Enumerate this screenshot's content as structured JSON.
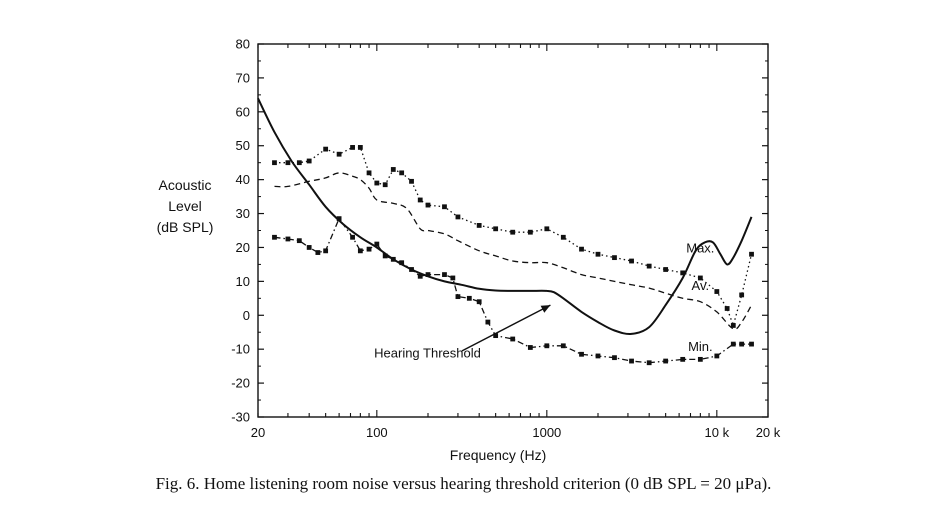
{
  "caption": "Fig. 6. Home listening room noise versus hearing threshold criterion (0 dB SPL = 20 μPa).",
  "chart_data": {
    "type": "line",
    "xscale": "log",
    "xlim": [
      20,
      20000
    ],
    "ylim": [
      -30,
      80
    ],
    "ylabel_lines": [
      "Acoustic",
      "Level",
      "(dB SPL)"
    ],
    "xlabel": "Frequency (Hz)",
    "yticks": [
      -30,
      -20,
      -10,
      0,
      10,
      20,
      30,
      40,
      50,
      60,
      70,
      80
    ],
    "xtick_labels": [
      {
        "value": 20,
        "label": "20"
      },
      {
        "value": 100,
        "label": "100"
      },
      {
        "value": 1000,
        "label": "1000"
      },
      {
        "value": 10000,
        "label": "10 k"
      },
      {
        "value": 20000,
        "label": "20 k"
      }
    ],
    "series": [
      {
        "name": "Max.",
        "style": "dotted-markers",
        "label_at": [
          8000,
          20
        ],
        "x": [
          25,
          30,
          35,
          40,
          50,
          60,
          72,
          80,
          90,
          100,
          112,
          125,
          140,
          160,
          180,
          200,
          250,
          300,
          400,
          500,
          630,
          800,
          1000,
          1250,
          1600,
          2000,
          2500,
          3150,
          4000,
          5000,
          6300,
          8000,
          10000,
          11500,
          12500,
          14000,
          16000
        ],
        "y": [
          45,
          45,
          45,
          45.5,
          49,
          47.5,
          49.5,
          49.5,
          42,
          39,
          38.5,
          43,
          42,
          39.5,
          34,
          32.5,
          32,
          29,
          26.5,
          25.5,
          24.5,
          24.5,
          25.5,
          23,
          19.5,
          18,
          17,
          16,
          14.5,
          13.5,
          12.5,
          11,
          7,
          2,
          -3,
          6,
          18
        ]
      },
      {
        "name": "Av.",
        "style": "dashed",
        "label_at": [
          8000,
          9
        ],
        "x": [
          25,
          30,
          40,
          50,
          60,
          72,
          80,
          90,
          100,
          125,
          150,
          180,
          200,
          250,
          300,
          400,
          500,
          630,
          800,
          1000,
          1250,
          1600,
          2000,
          2500,
          3150,
          4000,
          5000,
          6300,
          8000,
          10000,
          12500,
          14000,
          16000
        ],
        "y": [
          38,
          38,
          39.5,
          40.5,
          42,
          41,
          40,
          37.5,
          34,
          33,
          31.5,
          25.5,
          25,
          24,
          22,
          19,
          17.5,
          16,
          15.5,
          15.5,
          14,
          12,
          11,
          10,
          9,
          8,
          6.5,
          5,
          4,
          1,
          -4,
          -2,
          3
        ]
      },
      {
        "name": "Min.",
        "style": "dash-dot-markers",
        "label_at": [
          8000,
          -9
        ],
        "x": [
          25,
          30,
          35,
          40,
          45,
          50,
          60,
          72,
          80,
          90,
          100,
          112,
          125,
          140,
          160,
          180,
          200,
          250,
          280,
          300,
          350,
          400,
          450,
          500,
          630,
          800,
          1000,
          1250,
          1600,
          2000,
          2500,
          3150,
          4000,
          5000,
          6300,
          8000,
          10000,
          12500,
          14000,
          16000
        ],
        "y": [
          23,
          22.5,
          22,
          20,
          18.5,
          19,
          28.5,
          23,
          19,
          19.5,
          21,
          17.5,
          16.5,
          15.5,
          13.5,
          11.5,
          12,
          12,
          11,
          5.5,
          5,
          4,
          -2,
          -6,
          -7,
          -9.5,
          -9,
          -9,
          -11.5,
          -12,
          -12.5,
          -13.5,
          -14,
          -13.5,
          -13,
          -13,
          -12,
          -8.5,
          -8.5,
          -8.5
        ]
      },
      {
        "name": "Hearing Threshold",
        "style": "solid",
        "label_at": [
          108,
          -11
        ],
        "arrow_to": [
          1050,
          3
        ],
        "x": [
          20,
          25,
          31.5,
          40,
          50,
          63,
          80,
          100,
          125,
          160,
          200,
          250,
          315,
          400,
          500,
          630,
          800,
          1000,
          1100,
          1250,
          1600,
          2000,
          2500,
          3150,
          4000,
          5000,
          6300,
          7500,
          8500,
          9500,
          10500,
          11500,
          12500,
          14000,
          16000
        ],
        "y": [
          64,
          54,
          45.5,
          38.5,
          32,
          27,
          23,
          20,
          16.5,
          13.5,
          11.5,
          10,
          9,
          7.8,
          7.3,
          7.2,
          7.2,
          7.2,
          6.8,
          5,
          1,
          -2,
          -4.5,
          -5.5,
          -3.5,
          3,
          11,
          19,
          21.5,
          21.5,
          18,
          15,
          17,
          22,
          29
        ]
      }
    ]
  }
}
